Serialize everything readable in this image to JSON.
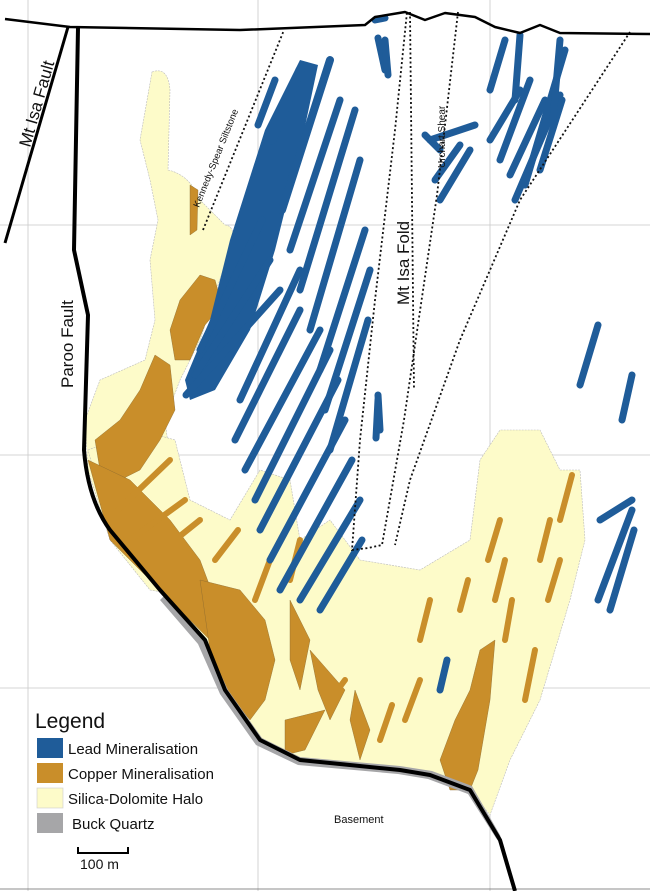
{
  "labels": {
    "mt_isa_fault": "Mt Isa Fault",
    "paroo_fault": "Paroo Fault",
    "kennedy_spear": "Kennedy-Spear Siltstone",
    "urchart_shear": "Urchart Shear",
    "mt_isa_fold": "Mt Isa Fold",
    "basement": "Basement"
  },
  "legend": {
    "title": "Legend",
    "items": [
      {
        "label": "Lead Mineralisation",
        "color": "#1f5c99"
      },
      {
        "label": "Copper Mineralisation",
        "color": "#c98e2a"
      },
      {
        "label": "Silica-Dolomite Halo",
        "color": "#fdfbc9"
      },
      {
        "label": "Buck Quartz",
        "color": "#a6a6a8"
      }
    ]
  },
  "scale_bar": {
    "label": "100 m"
  }
}
